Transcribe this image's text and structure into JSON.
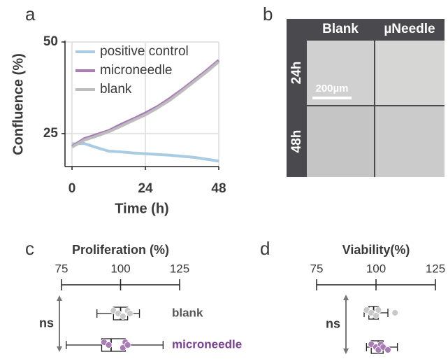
{
  "panel_labels": [
    "a",
    "b",
    "c",
    "d"
  ],
  "image_panel": {
    "columns": [
      "Blank",
      "µNeedle"
    ],
    "rows": [
      "24h",
      "48h"
    ],
    "scale_bar": "200µm"
  },
  "chart_data": [
    {
      "type": "line",
      "xlabel": "Time (h)",
      "ylabel": "Confluence (%)",
      "x": [
        0,
        4,
        8,
        12,
        16,
        20,
        24,
        28,
        32,
        36,
        40,
        44,
        48
      ],
      "series": [
        {
          "name": "positive control",
          "color": "#a9cbe3",
          "values": [
            22.2,
            22.3,
            21.2,
            20.2,
            20.0,
            19.7,
            19.5,
            19.3,
            19.1,
            18.8,
            18.5,
            18.0,
            17.5
          ]
        },
        {
          "name": "microneedle",
          "color": "#a97cb6",
          "values": [
            21.5,
            23.6,
            24.7,
            25.8,
            27.5,
            29.0,
            30.6,
            32.4,
            34.6,
            37.0,
            39.6,
            42.2,
            45.0
          ]
        },
        {
          "name": "blank",
          "color": "#bdbdbd",
          "values": [
            21.3,
            23.2,
            24.3,
            25.5,
            27.0,
            28.6,
            30.1,
            32.0,
            34.1,
            36.6,
            39.2,
            41.8,
            44.6
          ]
        }
      ],
      "xlim": [
        -2.3,
        48
      ],
      "ylim": [
        16,
        50
      ],
      "xticks": [
        0,
        24,
        48
      ],
      "yticks": [
        25,
        50
      ],
      "grid": true,
      "legend": "upper-left"
    },
    {
      "type": "box",
      "title": "Proliferation (%)",
      "xlim": [
        75,
        125
      ],
      "xticks": [
        75,
        100,
        125
      ],
      "annotation": "ns",
      "categories": [
        "blank",
        "microneedle"
      ],
      "boxes": [
        {
          "color": "#c9c9c9",
          "label_color": "#555555",
          "whislo": 90,
          "q1": 97,
          "med": 100,
          "q3": 103,
          "whishi": 108,
          "points": [
            97,
            99,
            101,
            103,
            104
          ]
        },
        {
          "color": "#a97cb6",
          "label_color": "#7b3f93",
          "whislo": 77,
          "q1": 92,
          "med": 96,
          "q3": 102,
          "whishi": 118,
          "points": [
            93,
            95,
            101,
            102,
            103
          ]
        }
      ]
    },
    {
      "type": "box",
      "title": "Viability(%)",
      "xlim": [
        75,
        125
      ],
      "xticks": [
        75,
        100,
        125
      ],
      "annotation": "ns",
      "boxes": [
        {
          "color": "#c9c9c9",
          "whislo": 95,
          "q1": 97,
          "med": 99,
          "q3": 101,
          "whishi": 105,
          "points": [
            96,
            98,
            100,
            101,
            108
          ]
        },
        {
          "color": "#a97cb6",
          "whislo": 96,
          "q1": 98,
          "med": 101,
          "q3": 103,
          "whishi": 109,
          "points": [
            98,
            100,
            101,
            102,
            103,
            105
          ]
        }
      ]
    }
  ]
}
